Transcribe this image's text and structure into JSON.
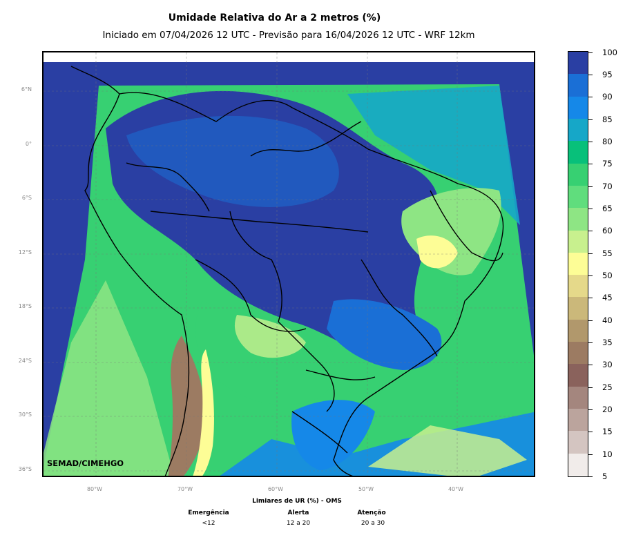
{
  "header": {
    "title": "Umidade Relativa do Ar a 2 metros (%)",
    "subtitle": "Iniciado em 07/04/2026 12 UTC - Previsão para 16/04/2026 12 UTC - WRF 12km"
  },
  "map": {
    "lat_labels": [
      "6°N",
      "0°",
      "6°S",
      "12°S",
      "18°S",
      "24°S",
      "30°S",
      "36°S"
    ],
    "lon_labels": [
      "80°W",
      "70°W",
      "60°W",
      "50°W",
      "40°W"
    ],
    "credit": "SEMAD/CIMEHGO",
    "colors": {
      "very_humid": "#2a3fa3",
      "humid": "#1a6fd6",
      "mid_blue": "#1588e8",
      "teal": "#16a7c8",
      "green_dark": "#08c07a",
      "green": "#37d072",
      "green_light": "#8ee584",
      "yellow": "#fdfd96",
      "brown": "#9c7b62"
    }
  },
  "colorbar": {
    "ticks": [
      "100",
      "95",
      "90",
      "85",
      "80",
      "75",
      "70",
      "65",
      "60",
      "55",
      "50",
      "45",
      "40",
      "35",
      "30",
      "25",
      "20",
      "15",
      "10",
      "5"
    ],
    "colors": [
      "#2a3fa3",
      "#1a6fd6",
      "#1588e8",
      "#16a7c8",
      "#08c07a",
      "#37d072",
      "#60dd7d",
      "#8ee584",
      "#c8f08e",
      "#fdfd96",
      "#e5d98a",
      "#cbb87a",
      "#b1986c",
      "#9c7b62",
      "#8a625c",
      "#a4867e",
      "#bba49d",
      "#d4c5c1",
      "#f1ecea"
    ]
  },
  "legend": {
    "title": "Limiares de UR (%) - OMS",
    "columns": [
      {
        "label": "Emergência",
        "value": "<12"
      },
      {
        "label": "Alerta",
        "value": "12 a 20"
      },
      {
        "label": "Atenção",
        "value": "20 a 30"
      }
    ]
  }
}
